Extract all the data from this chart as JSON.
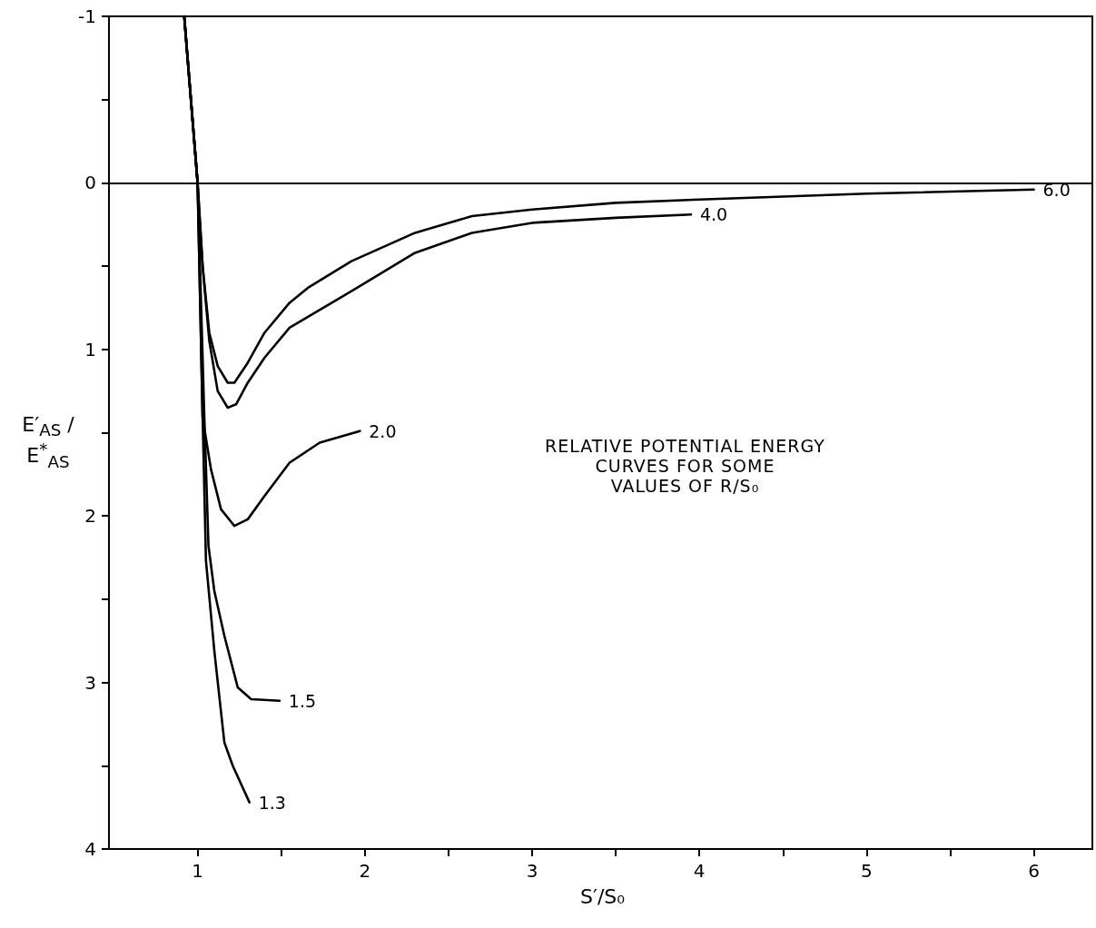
{
  "chart_data": {
    "type": "line",
    "xlabel": "S′/S₀",
    "ylabel": "E′$_{AS}$ / E$^{*}$$_{AS}$",
    "annotations": [
      "RELATIVE POTENTIAL ENERGY\nCURVES FOR SOME\nVALUES OF R/S₀"
    ],
    "xlim": [
      0.47,
      6.35
    ],
    "ylim": [
      4,
      -1
    ],
    "xticks": [
      1,
      {
        "value": 1.5,
        "label": null
      },
      2,
      {
        "value": 2.5,
        "label": null
      },
      3,
      {
        "value": 3.5,
        "label": null
      },
      4,
      {
        "value": 4.5,
        "label": null
      },
      5,
      {
        "value": 5.5,
        "label": null
      },
      6
    ],
    "yticks": [
      -1,
      {
        "value": -0.5,
        "label": null
      },
      0,
      {
        "value": 0.5,
        "label": null
      },
      1,
      {
        "value": 1.5,
        "label": null
      },
      2,
      {
        "value": 2.5,
        "label": null
      },
      3,
      {
        "value": 3.5,
        "label": null
      },
      4
    ],
    "marker": "none",
    "line_style": "solid",
    "grid": false,
    "ref_lines": [
      {
        "axis": "y",
        "value": 0,
        "color": "#000000"
      }
    ],
    "series": [
      {
        "name": "6.0",
        "color": "#000000",
        "x": [
          0.92,
          0.96,
          1.0,
          1.03,
          1.07,
          1.12,
          1.18,
          1.22,
          1.3,
          1.4,
          1.55,
          1.66,
          1.92,
          2.3,
          2.64,
          3.0,
          3.5,
          4.0,
          5.0,
          6.0
        ],
        "values": [
          -1,
          -0.5,
          0,
          0.5,
          0.9,
          1.1,
          1.2,
          1.2,
          1.08,
          0.9,
          0.72,
          0.63,
          0.47,
          0.3,
          0.2,
          0.16,
          0.12,
          0.1,
          0.065,
          0.04
        ]
      },
      {
        "name": "4.0",
        "color": "#000000",
        "x": [
          0.92,
          0.96,
          1.0,
          1.03,
          1.07,
          1.12,
          1.18,
          1.23,
          1.3,
          1.4,
          1.55,
          1.92,
          2.3,
          2.64,
          3.0,
          3.5,
          3.95
        ],
        "values": [
          -1,
          -0.5,
          0,
          0.5,
          0.95,
          1.25,
          1.35,
          1.33,
          1.2,
          1.05,
          0.87,
          0.65,
          0.42,
          0.3,
          0.24,
          0.21,
          0.19
        ]
      },
      {
        "name": "2.0",
        "color": "#000000",
        "x": [
          0.92,
          0.96,
          1.0,
          1.03,
          1.08,
          1.14,
          1.22,
          1.3,
          1.4,
          1.55,
          1.73,
          1.97
        ],
        "values": [
          -1,
          -0.5,
          0,
          1.41,
          1.72,
          1.96,
          2.06,
          2.02,
          1.88,
          1.68,
          1.56,
          1.49
        ]
      },
      {
        "name": "1.5",
        "color": "#000000",
        "x": [
          0.92,
          0.96,
          1.0,
          1.04,
          1.065,
          1.1,
          1.16,
          1.24,
          1.32,
          1.49
        ],
        "values": [
          -1,
          -0.5,
          0,
          1.4,
          2.18,
          2.45,
          2.72,
          3.03,
          3.1,
          3.11
        ]
      },
      {
        "name": "1.3",
        "color": "#000000",
        "x": [
          0.92,
          0.96,
          1.0,
          1.03,
          1.05,
          1.1,
          1.16,
          1.21,
          1.31
        ],
        "values": [
          -1,
          -0.5,
          0,
          1.4,
          2.27,
          2.81,
          3.36,
          3.5,
          3.72
        ]
      }
    ]
  }
}
